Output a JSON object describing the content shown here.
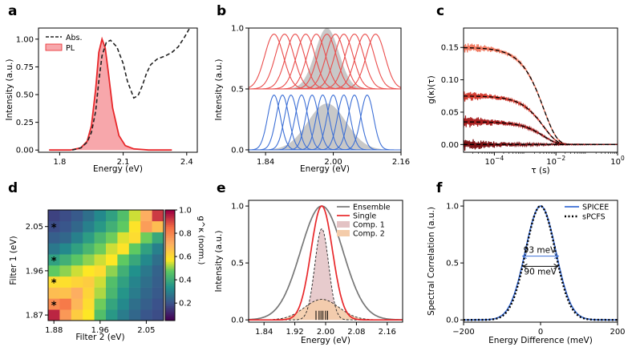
{
  "figure": {
    "panels": [
      {
        "id": "a",
        "letter": "a"
      },
      {
        "id": "b",
        "letter": "b"
      },
      {
        "id": "c",
        "letter": "c"
      },
      {
        "id": "d",
        "letter": "d"
      },
      {
        "id": "e",
        "letter": "e"
      },
      {
        "id": "f",
        "letter": "f"
      }
    ]
  },
  "chart_data": [
    {
      "id": "a",
      "type": "area",
      "xlabel": "Energy (eV)",
      "ylabel": "Intensity (a.u.)",
      "xlim": [
        1.7,
        2.45
      ],
      "ylim": [
        -0.02,
        1.1
      ],
      "xticks": [
        {
          "v": 1.8,
          "label": "1.8"
        },
        {
          "v": 2.1,
          "label": "2.1"
        },
        {
          "v": 2.4,
          "label": "2.4"
        }
      ],
      "yticks": [
        {
          "v": 0,
          "label": "0.00"
        },
        {
          "v": 0.25,
          "label": "0.25"
        },
        {
          "v": 0.5,
          "label": "0.50"
        },
        {
          "v": 0.75,
          "label": "0.75"
        },
        {
          "v": 1.0,
          "label": "1.00"
        }
      ],
      "legend": {
        "position": "top-left",
        "entries": [
          "Abs.",
          "PL"
        ]
      },
      "series": [
        {
          "name": "Abs.",
          "style": "dashed",
          "color": "#222222",
          "x": [
            1.86,
            1.9,
            1.93,
            1.95,
            1.97,
            1.985,
            2.0,
            2.02,
            2.04,
            2.07,
            2.1,
            2.12,
            2.15,
            2.17,
            2.19,
            2.21,
            2.23,
            2.26,
            2.3,
            2.33,
            2.36,
            2.39,
            2.42
          ],
          "y": [
            0.0,
            0.02,
            0.07,
            0.16,
            0.35,
            0.62,
            0.85,
            0.97,
            0.99,
            0.93,
            0.78,
            0.62,
            0.47,
            0.49,
            0.58,
            0.69,
            0.77,
            0.82,
            0.85,
            0.88,
            0.93,
            1.02,
            1.12
          ]
        },
        {
          "name": "PL",
          "style": "filled",
          "color": "#e8272a",
          "fill": "#f7a7ab",
          "x": [
            1.75,
            1.85,
            1.9,
            1.93,
            1.95,
            1.97,
            1.985,
            2.0,
            2.015,
            2.03,
            2.05,
            2.08,
            2.11,
            2.15,
            2.22,
            2.33
          ],
          "y": [
            0.0,
            0.0,
            0.02,
            0.08,
            0.22,
            0.55,
            0.88,
            1.0,
            0.92,
            0.7,
            0.38,
            0.13,
            0.04,
            0.01,
            0.0,
            0.0
          ]
        }
      ]
    },
    {
      "id": "b",
      "type": "area",
      "xlabel": "Energy (eV)",
      "ylabel": "Intensity (a.u.)",
      "xlim": [
        1.8,
        2.16
      ],
      "ylim": [
        -0.02,
        1.0
      ],
      "xticks": [
        {
          "v": 1.84,
          "label": "1.84"
        },
        {
          "v": 2.0,
          "label": "2.00"
        },
        {
          "v": 2.16,
          "label": "2.16"
        }
      ],
      "yticks": [
        {
          "v": 0,
          "label": "0.0"
        },
        {
          "v": 0.5,
          "label": "0.5"
        },
        {
          "v": 1.0,
          "label": "1.0"
        }
      ],
      "groups": [
        {
          "color": "#ea4d4c",
          "baseline": 0.5,
          "amplitude": 0.45,
          "sigma": 0.022,
          "centers": [
            1.86,
            1.885,
            1.91,
            1.935,
            1.96,
            1.985,
            2.005,
            2.025,
            2.05,
            2.075,
            2.1
          ]
        },
        {
          "color": "#3c6fd6",
          "baseline": 0.0,
          "amplitude": 0.45,
          "sigma": 0.015,
          "centers": [
            1.86,
            1.88,
            1.9,
            1.925,
            1.95,
            1.975,
            2.0,
            2.025,
            2.05,
            2.08
          ]
        }
      ],
      "ensemble": [
        {
          "baseline": 0.5,
          "amplitude": 0.5,
          "center": 1.985,
          "sigma": 0.028,
          "color": "#c8c8c8"
        },
        {
          "baseline": 0.0,
          "amplitude": 0.38,
          "center": 1.985,
          "sigma": 0.045,
          "color": "#c8c8c8"
        }
      ]
    },
    {
      "id": "c",
      "type": "line",
      "xlabel": "τ (s)",
      "ylabel": "g(κ)(τ)",
      "xscale": "log",
      "xlim": [
        1e-05,
        1
      ],
      "ylim": [
        -0.012,
        0.18
      ],
      "xticks": [
        {
          "v": 0.0001,
          "label": "10",
          "exp": "−4"
        },
        {
          "v": 0.01,
          "label": "10",
          "exp": "−2"
        },
        {
          "v": 1,
          "label": "10",
          "exp": "0"
        }
      ],
      "yticks": [
        {
          "v": 0,
          "label": "0.00"
        },
        {
          "v": 0.05,
          "label": "0.05"
        },
        {
          "v": 0.1,
          "label": "0.10"
        },
        {
          "v": 0.15,
          "label": "0.15"
        }
      ],
      "series": [
        {
          "amplitude": 0.15,
          "tau": 0.004,
          "color": "#f0775e",
          "noise": 0.006
        },
        {
          "amplitude": 0.075,
          "tau": 0.004,
          "color": "#d23a2e",
          "noise": 0.006
        },
        {
          "amplitude": 0.035,
          "tau": 0.004,
          "color": "#a81e1e",
          "noise": 0.007
        },
        {
          "amplitude": 0.0,
          "tau": 0.004,
          "color": "#7a0f12",
          "noise": 0.007
        }
      ]
    },
    {
      "id": "d",
      "type": "heatmap",
      "xlabel": "Filter 2 (eV)",
      "ylabel": "Filter 1 (eV)",
      "colorbar_label": "g^κ (norm.)",
      "xticks": [
        {
          "v": 0,
          "label": "1.88"
        },
        {
          "v": 4,
          "label": "1.96"
        },
        {
          "v": 8,
          "label": "2.05"
        }
      ],
      "yticks": [
        {
          "v": 0,
          "label": "1.87"
        },
        {
          "v": 4,
          "label": "1.96"
        },
        {
          "v": 8,
          "label": "2.05"
        }
      ],
      "colorbar_ticks": [
        {
          "v": 0.2,
          "label": "0.2"
        },
        {
          "v": 0.4,
          "label": "0.4"
        },
        {
          "v": 0.6,
          "label": "0.6"
        },
        {
          "v": 0.8,
          "label": "0.8"
        },
        {
          "v": 1.0,
          "label": "1.0"
        }
      ],
      "grid_size": 10,
      "stars": [
        1,
        3,
        5,
        8
      ],
      "star_label": "*",
      "values": [
        [
          0.95,
          0.75,
          0.62,
          0.55,
          0.42,
          0.32,
          0.25,
          0.2,
          0.16,
          0.14
        ],
        [
          0.78,
          0.82,
          0.68,
          0.58,
          0.46,
          0.35,
          0.28,
          0.22,
          0.18,
          0.15
        ],
        [
          0.66,
          0.65,
          0.7,
          0.6,
          0.5,
          0.4,
          0.31,
          0.25,
          0.2,
          0.17
        ],
        [
          0.58,
          0.57,
          0.6,
          0.62,
          0.52,
          0.42,
          0.34,
          0.27,
          0.22,
          0.18
        ],
        [
          0.45,
          0.48,
          0.52,
          0.55,
          0.58,
          0.48,
          0.38,
          0.3,
          0.24,
          0.19
        ],
        [
          0.34,
          0.38,
          0.44,
          0.48,
          0.52,
          0.55,
          0.45,
          0.36,
          0.28,
          0.22
        ],
        [
          0.24,
          0.28,
          0.34,
          0.4,
          0.46,
          0.52,
          0.56,
          0.45,
          0.34,
          0.26
        ],
        [
          0.18,
          0.2,
          0.26,
          0.33,
          0.4,
          0.46,
          0.53,
          0.58,
          0.46,
          0.36
        ],
        [
          0.14,
          0.16,
          0.2,
          0.26,
          0.32,
          0.38,
          0.45,
          0.56,
          0.74,
          0.66
        ],
        [
          0.12,
          0.14,
          0.17,
          0.22,
          0.28,
          0.34,
          0.42,
          0.52,
          0.7,
          0.92
        ]
      ]
    },
    {
      "id": "e",
      "type": "area",
      "xlabel": "Energy (eV)",
      "ylabel": "Intensity (a.u.)",
      "xlim": [
        1.8,
        2.2
      ],
      "ylim": [
        -0.02,
        1.05
      ],
      "xticks": [
        {
          "v": 1.84,
          "label": "1.84"
        },
        {
          "v": 1.92,
          "label": "1.92"
        },
        {
          "v": 2.0,
          "label": "2.00"
        },
        {
          "v": 2.08,
          "label": "2.08"
        },
        {
          "v": 2.16,
          "label": "2.16"
        }
      ],
      "yticks": [
        {
          "v": 0,
          "label": "0.0"
        },
        {
          "v": 0.5,
          "label": "0.5"
        },
        {
          "v": 1.0,
          "label": "1.0"
        }
      ],
      "legend": {
        "position": "top-right",
        "entries": [
          "Ensemble",
          "Single",
          "Comp. 1",
          "Comp. 2"
        ]
      },
      "series": [
        {
          "name": "Ensemble",
          "color": "#777777",
          "center": 1.99,
          "sigma": 0.055,
          "amplitude": 1.0
        },
        {
          "name": "Single",
          "color": "#e8272a",
          "center": 1.99,
          "sigma": 0.028,
          "amplitude": 1.0
        },
        {
          "name": "Comp. 1",
          "color": "#e3c2c4",
          "center": 1.99,
          "sigma": 0.018,
          "amplitude": 0.8
        },
        {
          "name": "Comp. 2",
          "color": "#f4ccaa",
          "center": 1.99,
          "sigma": 0.045,
          "amplitude": 0.18
        }
      ],
      "markers": [
        1.975,
        1.983,
        1.988,
        1.993,
        2.0,
        2.005
      ]
    },
    {
      "id": "f",
      "type": "line",
      "xlabel": "Energy Difference (meV)",
      "ylabel": "Spectral Correlation (a.u.)",
      "xlim": [
        -200,
        200
      ],
      "ylim": [
        -0.02,
        1.05
      ],
      "xticks": [
        {
          "v": -200,
          "label": "−200"
        },
        {
          "v": 0,
          "label": "0"
        },
        {
          "v": 200,
          "label": "200"
        }
      ],
      "yticks": [
        {
          "v": 0,
          "label": "0.0"
        },
        {
          "v": 0.5,
          "label": "0.5"
        },
        {
          "v": 1.0,
          "label": "1.0"
        }
      ],
      "legend": {
        "position": "top-right",
        "entries": [
          "SPICEE",
          "sPCFS"
        ]
      },
      "series": [
        {
          "name": "SPICEE",
          "color": "#3c6fd6",
          "style": "solid",
          "fwhm": 93
        },
        {
          "name": "sPCFS",
          "color": "#000000",
          "style": "dotted",
          "fwhm": 90
        }
      ],
      "annotations": [
        {
          "text": "93 meV",
          "color": "#3c6fd6",
          "fwhm": 93,
          "y": 0.56
        },
        {
          "text": "90 meV",
          "color": "#000000",
          "fwhm": 90,
          "y": 0.47
        }
      ]
    }
  ]
}
